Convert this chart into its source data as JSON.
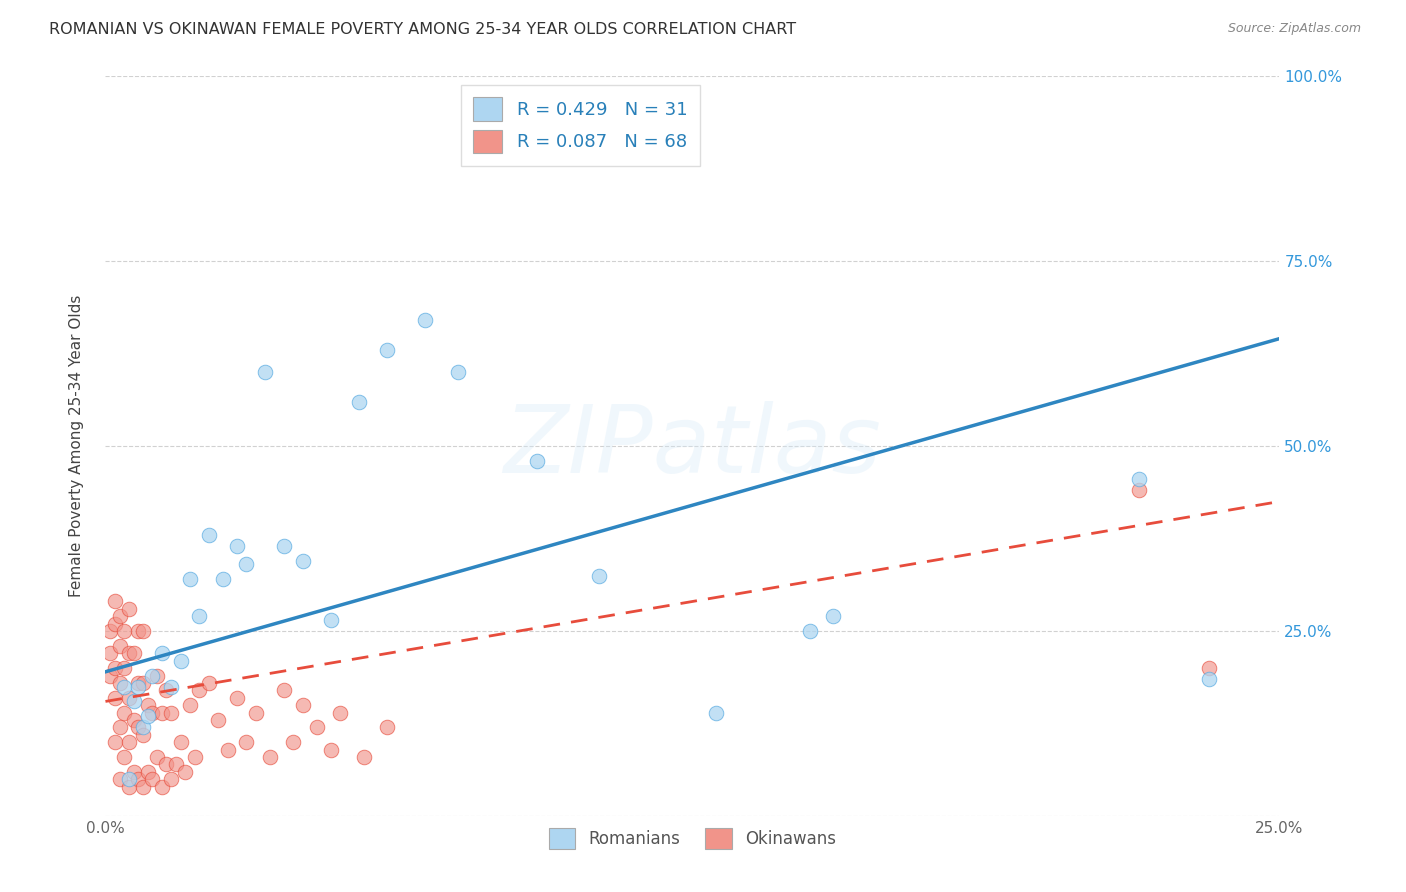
{
  "title": "ROMANIAN VS OKINAWAN FEMALE POVERTY AMONG 25-34 YEAR OLDS CORRELATION CHART",
  "source": "Source: ZipAtlas.com",
  "ylabel": "Female Poverty Among 25-34 Year Olds",
  "xlim": [
    0.0,
    0.25
  ],
  "ylim": [
    0.0,
    1.0
  ],
  "romanian_R": 0.429,
  "romanian_N": 31,
  "okinawan_R": 0.087,
  "okinawan_N": 68,
  "romanian_color": "#aed6f1",
  "romanian_edge": "#5dade2",
  "okinawan_color": "#f1948a",
  "okinawan_edge": "#e74c3c",
  "romanian_line_color": "#2e86c1",
  "okinawan_line_color": "#e74c3c",
  "watermark": "ZIPatlas",
  "romanians_x": [
    0.004,
    0.005,
    0.006,
    0.007,
    0.008,
    0.009,
    0.01,
    0.012,
    0.014,
    0.016,
    0.018,
    0.02,
    0.022,
    0.025,
    0.028,
    0.03,
    0.034,
    0.038,
    0.042,
    0.048,
    0.054,
    0.06,
    0.068,
    0.075,
    0.092,
    0.105,
    0.13,
    0.15,
    0.155,
    0.22,
    0.235
  ],
  "romanians_y": [
    0.175,
    0.05,
    0.155,
    0.175,
    0.12,
    0.135,
    0.19,
    0.22,
    0.175,
    0.21,
    0.32,
    0.27,
    0.38,
    0.32,
    0.365,
    0.34,
    0.6,
    0.365,
    0.345,
    0.265,
    0.56,
    0.63,
    0.67,
    0.6,
    0.48,
    0.325,
    0.14,
    0.25,
    0.27,
    0.455,
    0.185
  ],
  "okinawans_x": [
    0.001,
    0.001,
    0.001,
    0.002,
    0.002,
    0.002,
    0.002,
    0.002,
    0.003,
    0.003,
    0.003,
    0.003,
    0.003,
    0.004,
    0.004,
    0.004,
    0.004,
    0.005,
    0.005,
    0.005,
    0.005,
    0.005,
    0.006,
    0.006,
    0.006,
    0.007,
    0.007,
    0.007,
    0.007,
    0.008,
    0.008,
    0.008,
    0.008,
    0.009,
    0.009,
    0.01,
    0.01,
    0.011,
    0.011,
    0.012,
    0.012,
    0.013,
    0.013,
    0.014,
    0.014,
    0.015,
    0.016,
    0.017,
    0.018,
    0.019,
    0.02,
    0.022,
    0.024,
    0.026,
    0.028,
    0.03,
    0.032,
    0.035,
    0.038,
    0.04,
    0.042,
    0.045,
    0.048,
    0.05,
    0.055,
    0.06,
    0.22,
    0.235
  ],
  "okinawans_y": [
    0.19,
    0.22,
    0.25,
    0.1,
    0.16,
    0.2,
    0.26,
    0.29,
    0.05,
    0.12,
    0.18,
    0.23,
    0.27,
    0.08,
    0.14,
    0.2,
    0.25,
    0.04,
    0.1,
    0.16,
    0.22,
    0.28,
    0.06,
    0.13,
    0.22,
    0.05,
    0.12,
    0.18,
    0.25,
    0.04,
    0.11,
    0.18,
    0.25,
    0.06,
    0.15,
    0.05,
    0.14,
    0.08,
    0.19,
    0.04,
    0.14,
    0.07,
    0.17,
    0.05,
    0.14,
    0.07,
    0.1,
    0.06,
    0.15,
    0.08,
    0.17,
    0.18,
    0.13,
    0.09,
    0.16,
    0.1,
    0.14,
    0.08,
    0.17,
    0.1,
    0.15,
    0.12,
    0.09,
    0.14,
    0.08,
    0.12,
    0.44,
    0.2
  ]
}
